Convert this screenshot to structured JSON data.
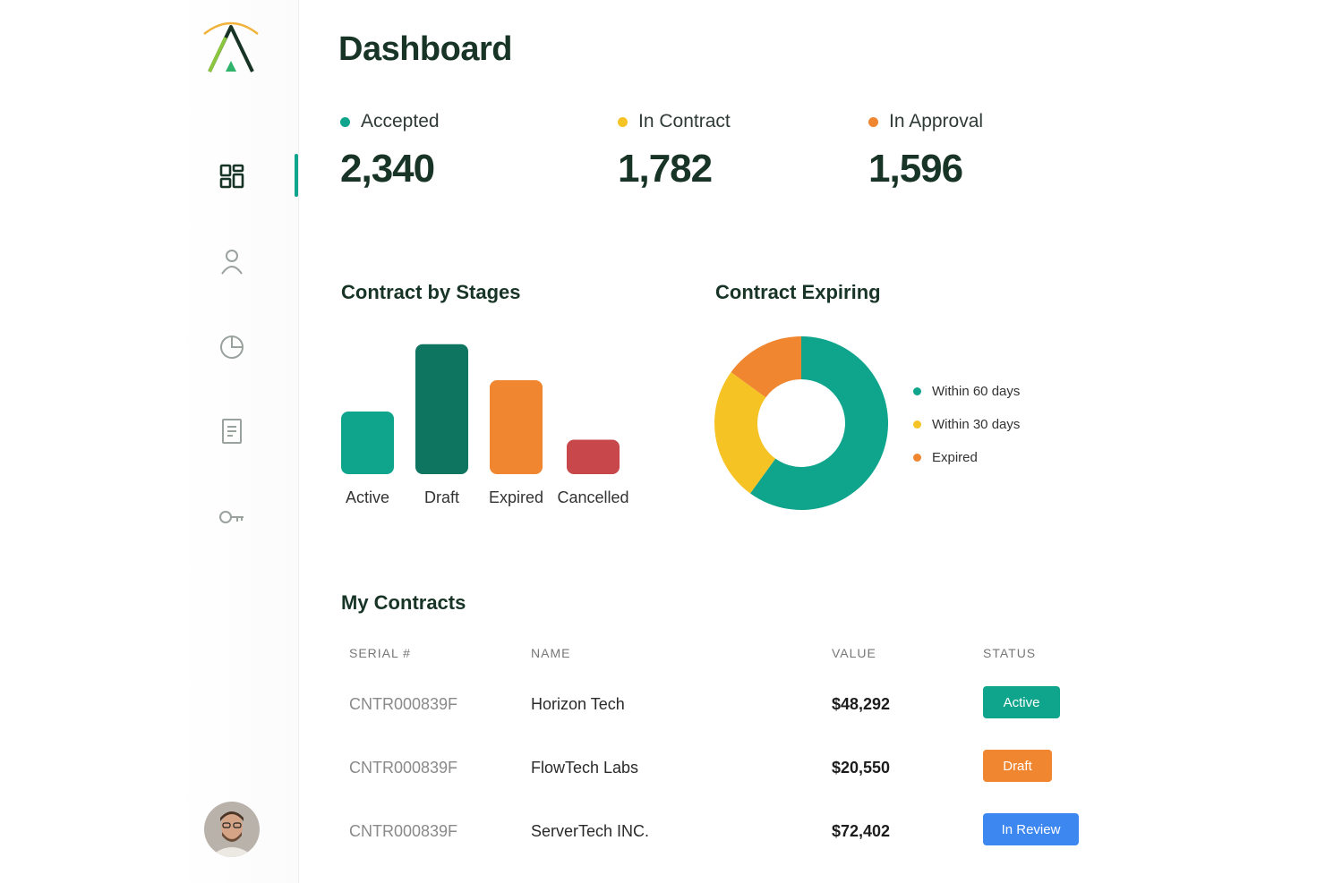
{
  "page": {
    "title": "Dashboard"
  },
  "sidebar": {
    "items": [
      {
        "name": "dashboard",
        "icon": "grid-icon",
        "active": true
      },
      {
        "name": "users",
        "icon": "user-icon",
        "active": false
      },
      {
        "name": "reports",
        "icon": "pie-chart-icon",
        "active": false
      },
      {
        "name": "documents",
        "icon": "document-icon",
        "active": false
      },
      {
        "name": "keys",
        "icon": "key-icon",
        "active": false
      }
    ],
    "avatar_icon": "user-avatar"
  },
  "stats": [
    {
      "label": "Accepted",
      "value": "2,340",
      "color": "#0fa48c"
    },
    {
      "label": "In Contract",
      "value": "1,782",
      "color": "#f6c325"
    },
    {
      "label": "In Approval",
      "value": "1,596",
      "color": "#f08630"
    }
  ],
  "sections": {
    "stages": "Contract by Stages",
    "expiring": "Contract Expiring",
    "contracts": "My Contracts"
  },
  "chart_data": [
    {
      "type": "bar",
      "title": "Contract by Stages",
      "categories": [
        "Active",
        "Draft",
        "Expired",
        "Cancelled"
      ],
      "values": [
        40,
        83,
        60,
        22
      ],
      "colors": [
        "#0fa48c",
        "#0e7561",
        "#f08630",
        "#c8474a"
      ],
      "ylim": [
        0,
        100
      ],
      "grid": false
    },
    {
      "type": "pie",
      "title": "Contract Expiring",
      "donut": true,
      "labels": [
        "Within 60 days",
        "Within 30 days",
        "Expired"
      ],
      "values": [
        60,
        25,
        15
      ],
      "colors": [
        "#0fa48c",
        "#f6c325",
        "#f08630"
      ],
      "legend": "right"
    }
  ],
  "table": {
    "headers": [
      "SERIAL #",
      "NAME",
      "VALUE",
      "STATUS"
    ],
    "rows": [
      {
        "serial": "CNTR000839F",
        "name": "Horizon Tech",
        "value": "$48,292",
        "status": "Active",
        "status_color": "#0fa48c"
      },
      {
        "serial": "CNTR000839F",
        "name": "FlowTech Labs",
        "value": "$20,550",
        "status": "Draft",
        "status_color": "#f08630"
      },
      {
        "serial": "CNTR000839F",
        "name": "ServerTech INC.",
        "value": "$72,402",
        "status": "In Review",
        "status_color": "#3d87f0"
      }
    ]
  }
}
